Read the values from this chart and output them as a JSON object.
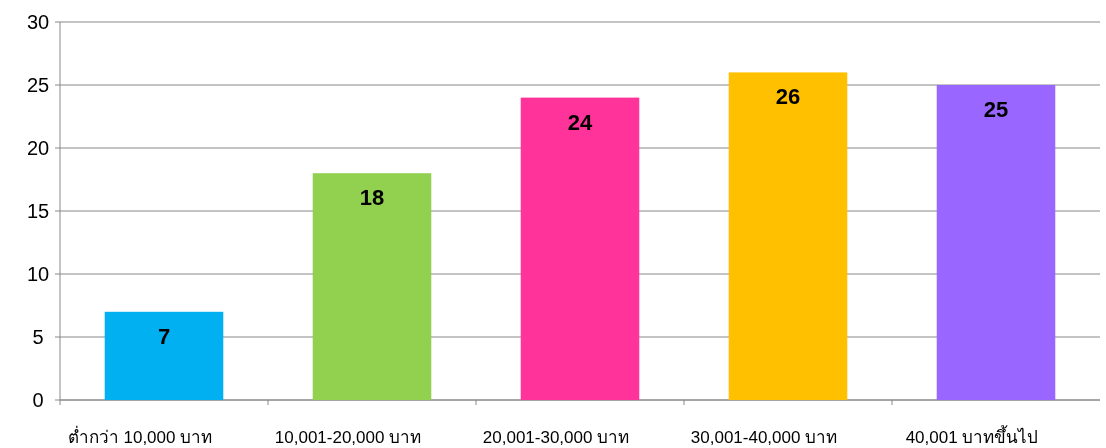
{
  "chart_data": {
    "type": "bar",
    "categories": [
      "ต่ำกว่า 10,000 บาท",
      "10,001-20,000 บาท",
      "20,001-30,000 บาท",
      "30,001-40,000 บาท",
      "40,001 บาทขึ้นไป"
    ],
    "values": [
      7,
      18,
      24,
      26,
      25
    ],
    "colors": [
      "#00b0f0",
      "#92d050",
      "#ff3399",
      "#ffc000",
      "#9966ff"
    ],
    "ylim": [
      0,
      30
    ],
    "yticks": [
      0,
      5,
      10,
      15,
      20,
      25,
      30
    ],
    "grid": "y",
    "data_labels": true
  }
}
